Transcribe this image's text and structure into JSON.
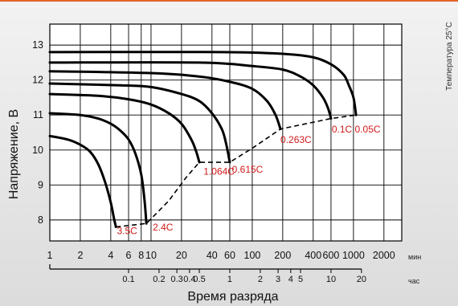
{
  "chart_data": {
    "type": "line",
    "title": "",
    "xlabel": "Время разряда",
    "ylabel": "Напряжение, В",
    "side_note": "Температура 25°C",
    "x_scale": "log",
    "xlim_min": [
      1,
      3000
    ],
    "ylim": [
      7.4,
      13.6
    ],
    "grid": true,
    "x_ticks_min": [
      1,
      2,
      4,
      6,
      8,
      10,
      20,
      40,
      60,
      100,
      200,
      400,
      600,
      1000,
      2000
    ],
    "x_tick_labels_min": [
      "1",
      "2",
      "4",
      "6",
      "8",
      "10",
      "20",
      "40",
      "60",
      "100",
      "200",
      "400",
      "600",
      "1000",
      "2000"
    ],
    "x_unit_min": "мин",
    "x_ticks_hours": [
      0.1,
      0.2,
      0.3,
      0.4,
      0.5,
      1,
      2,
      3,
      4,
      5,
      10,
      20
    ],
    "x_tick_labels_hours": [
      "0.1",
      "0.2",
      "0.3",
      "0.4",
      "0.5",
      "1",
      "2",
      "3",
      "4",
      "5",
      "10",
      "20"
    ],
    "x_unit_hours": "час",
    "y_ticks": [
      8,
      9,
      10,
      11,
      12,
      13
    ],
    "y_tick_labels": [
      "8",
      "9",
      "10",
      "11",
      "12",
      "13"
    ],
    "series": [
      {
        "name": "3.5C",
        "label_at": [
          4.6,
          7.6
        ],
        "points": [
          [
            1,
            10.4
          ],
          [
            1.5,
            10.3
          ],
          [
            2,
            10.15
          ],
          [
            2.5,
            9.95
          ],
          [
            3,
            9.6
          ],
          [
            3.5,
            9.1
          ],
          [
            4,
            8.5
          ],
          [
            4.3,
            8.05
          ],
          [
            4.5,
            7.8
          ]
        ]
      },
      {
        "name": "2.4C",
        "label_at": [
          10.4,
          7.7
        ],
        "points": [
          [
            1,
            11.05
          ],
          [
            2,
            11.0
          ],
          [
            3,
            10.9
          ],
          [
            4,
            10.75
          ],
          [
            5,
            10.55
          ],
          [
            6,
            10.3
          ],
          [
            7,
            9.9
          ],
          [
            8,
            9.3
          ],
          [
            8.6,
            8.6
          ],
          [
            9,
            7.9
          ]
        ]
      },
      {
        "name": "1.064C",
        "label_at": [
          33,
          9.3
        ],
        "points": [
          [
            1,
            11.6
          ],
          [
            3,
            11.55
          ],
          [
            6,
            11.45
          ],
          [
            10,
            11.3
          ],
          [
            15,
            11.05
          ],
          [
            20,
            10.75
          ],
          [
            25,
            10.3
          ],
          [
            28,
            9.95
          ],
          [
            30,
            9.65
          ]
        ]
      },
      {
        "name": "0.615C",
        "label_at": [
          63,
          9.35
        ],
        "points": [
          [
            1,
            11.9
          ],
          [
            5,
            11.85
          ],
          [
            10,
            11.8
          ],
          [
            20,
            11.6
          ],
          [
            30,
            11.4
          ],
          [
            40,
            11.05
          ],
          [
            50,
            10.6
          ],
          [
            55,
            10.2
          ],
          [
            60,
            9.65
          ]
        ]
      },
      {
        "name": "0.263C",
        "label_at": [
          190,
          10.2
        ],
        "points": [
          [
            1,
            12.25
          ],
          [
            10,
            12.2
          ],
          [
            30,
            12.1
          ],
          [
            60,
            11.95
          ],
          [
            100,
            11.75
          ],
          [
            140,
            11.4
          ],
          [
            170,
            11.0
          ],
          [
            190,
            10.6
          ]
        ]
      },
      {
        "name": "0.1C",
        "label_at": [
          610,
          10.5
        ],
        "points": [
          [
            1,
            12.5
          ],
          [
            30,
            12.5
          ],
          [
            100,
            12.4
          ],
          [
            200,
            12.3
          ],
          [
            300,
            12.1
          ],
          [
            400,
            11.85
          ],
          [
            500,
            11.5
          ],
          [
            560,
            11.2
          ],
          [
            600,
            10.9
          ]
        ]
      },
      {
        "name": "0.05C",
        "label_at": [
          1030,
          10.5
        ],
        "points": [
          [
            1,
            12.8
          ],
          [
            50,
            12.8
          ],
          [
            200,
            12.75
          ],
          [
            400,
            12.65
          ],
          [
            600,
            12.45
          ],
          [
            800,
            12.15
          ],
          [
            900,
            11.85
          ],
          [
            1000,
            11.5
          ],
          [
            1060,
            11.0
          ]
        ]
      }
    ],
    "cutoff_line": {
      "style": "dashed",
      "points": [
        [
          4.5,
          7.8
        ],
        [
          9,
          7.9
        ],
        [
          15,
          8.55
        ],
        [
          22,
          9.2
        ],
        [
          30,
          9.65
        ],
        [
          60,
          9.65
        ],
        [
          100,
          10.05
        ],
        [
          190,
          10.6
        ],
        [
          600,
          10.9
        ],
        [
          1060,
          11.0
        ]
      ]
    }
  }
}
